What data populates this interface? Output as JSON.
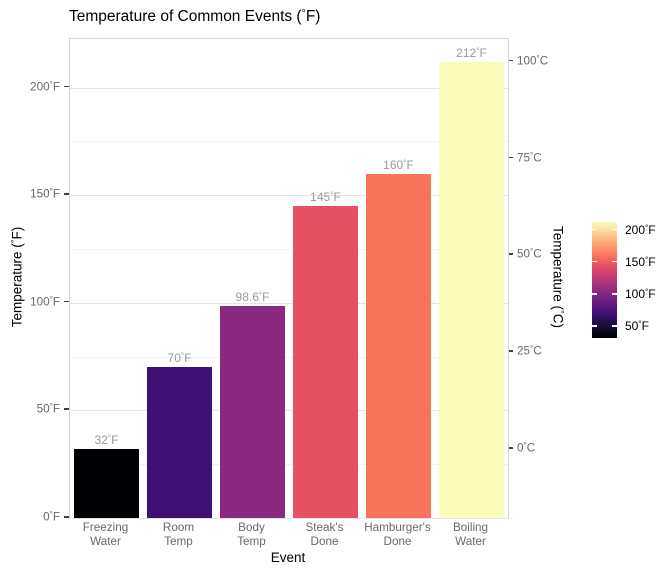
{
  "title": "Temperature of Common Events (°F)",
  "chart_data": {
    "type": "bar",
    "title": "Temperature of Common Events (°F)",
    "xlabel": "Event",
    "ylabel_left": "Temperature (°F)",
    "ylabel_right": "Temperature (°C)",
    "categories": [
      "Freezing Water",
      "Room Temp",
      "Body Temp",
      "Steak's Done",
      "Hamburger's Done",
      "Boiling Water"
    ],
    "values": [
      32,
      70,
      98.6,
      145,
      160,
      212
    ],
    "bar_labels": [
      "32°F",
      "70°F",
      "98.6°F",
      "145°F",
      "160°F",
      "212°F"
    ],
    "bar_colors": [
      "#000004",
      "#3d1171",
      "#8b2981",
      "#e45164",
      "#f7745b",
      "#fbfcba"
    ],
    "ylim_f": [
      0,
      222.6
    ],
    "yticks_left": [
      {
        "value": 0,
        "label": "0°F"
      },
      {
        "value": 50,
        "label": "50°F"
      },
      {
        "value": 100,
        "label": "100°F"
      },
      {
        "value": 150,
        "label": "150°F"
      },
      {
        "value": 200,
        "label": "200°F"
      }
    ],
    "yticks_minor": [
      25,
      75,
      125,
      175
    ],
    "yticks_right": [
      {
        "value_f": 32,
        "label": "0°C"
      },
      {
        "value_f": 77,
        "label": "25°C"
      },
      {
        "value_f": 122,
        "label": "50°C"
      },
      {
        "value_f": 167,
        "label": "75°C"
      },
      {
        "value_f": 212,
        "label": "100°C"
      }
    ],
    "grid": "horizontal-only",
    "legend_position": "right"
  },
  "legend": {
    "range_f": [
      32,
      212
    ],
    "ticks": [
      {
        "value": 50,
        "label": "50°F"
      },
      {
        "value": 100,
        "label": "100°F"
      },
      {
        "value": 150,
        "label": "150°F"
      },
      {
        "value": 200,
        "label": "200°F"
      }
    ],
    "gradient_stops": [
      "#000004",
      "#140e36",
      "#3b0f70",
      "#641a80",
      "#8c2981",
      "#b73779",
      "#de4968",
      "#f7705c",
      "#fe9f6d",
      "#fecf92",
      "#fcfdbf"
    ]
  },
  "colors": {
    "background": "#ffffff",
    "panel_border": "#d4d4d4",
    "grid_major": "#e5e5e5",
    "grid_minor": "#f2f2f2",
    "axis_tick": "#404040",
    "axis_text": "#696969",
    "bar_value_label": "#999999",
    "title_text": "#000000"
  }
}
